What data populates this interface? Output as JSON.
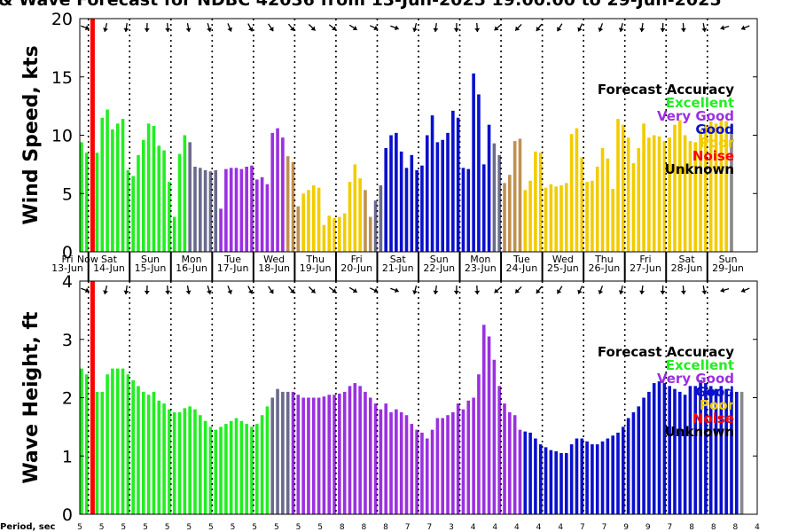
{
  "title": "& Wave Forecast for NDBC 42036 from 13-Jun-2025 19:00:00 to 29-Jun-2025",
  "colors": {
    "Excellent": "#22ee22",
    "Very Good": "#9b30e0",
    "Good": "#0a10cc",
    "Poor": "#f2cc00",
    "Noise": "#ff0000",
    "Unknown": "#000000",
    "mixed": "#6a6a8c",
    "mixed2": "#c09050"
  },
  "now_label": "Now",
  "days": [
    {
      "dow": "Fri",
      "date": "13-Jun"
    },
    {
      "dow": "Sat",
      "date": "14-Jun"
    },
    {
      "dow": "Sun",
      "date": "15-Jun"
    },
    {
      "dow": "Mon",
      "date": "16-Jun"
    },
    {
      "dow": "Tue",
      "date": "17-Jun"
    },
    {
      "dow": "Wed",
      "date": "18-Jun"
    },
    {
      "dow": "Thu",
      "date": "19-Jun"
    },
    {
      "dow": "Fri",
      "date": "20-Jun"
    },
    {
      "dow": "Sat",
      "date": "21-Jun"
    },
    {
      "dow": "Sun",
      "date": "22-Jun"
    },
    {
      "dow": "Mon",
      "date": "23-Jun"
    },
    {
      "dow": "Tue",
      "date": "24-Jun"
    },
    {
      "dow": "Wed",
      "date": "25-Jun"
    },
    {
      "dow": "Thu",
      "date": "26-Jun"
    },
    {
      "dow": "Fri",
      "date": "27-Jun"
    },
    {
      "dow": "Sat",
      "date": "28-Jun"
    },
    {
      "dow": "Sun",
      "date": "29-Jun"
    }
  ],
  "legend_title": "Forecast Accuracy",
  "legend_items": [
    "Excellent",
    "Very Good",
    "Good",
    "Poor",
    "Noise",
    "Unknown"
  ],
  "chart_data": [
    {
      "type": "bar",
      "ylabel": "Wind Speed, kts",
      "ylim": [
        0,
        20
      ],
      "yticks": [
        0,
        5,
        10,
        15,
        20
      ],
      "x_start_hour": 19,
      "x_step_hours": 3,
      "values": [
        9.4,
        8.5,
        0,
        8.5,
        11.5,
        12.2,
        10.5,
        11,
        11.4,
        7,
        6.5,
        8.3,
        9.6,
        11,
        10.8,
        9.1,
        8.7,
        6,
        3,
        8.4,
        10,
        9.4,
        7.3,
        7.2,
        7,
        6.9,
        7,
        3.7,
        7.1,
        7.2,
        7.2,
        7.1,
        7.3,
        7.4,
        6.2,
        6.4,
        5.8,
        10.2,
        10.6,
        9.8,
        8.2,
        7.7,
        3.9,
        5,
        5.3,
        5.7,
        5.5,
        2.3,
        3.1,
        2.9,
        3,
        3.3,
        6,
        7.5,
        6.3,
        5.3,
        3,
        4.4,
        5.7,
        8.9,
        10,
        10.2,
        8.6,
        7.2,
        8.3,
        7,
        7.4,
        10,
        11.7,
        9.4,
        9.6,
        10.2,
        12.1,
        11.5,
        7.2,
        7.1,
        15.3,
        13.5,
        7.5,
        10.9,
        9.3,
        8.3,
        5.9,
        6.6,
        9.5,
        9.7,
        5.3,
        6.1,
        8.6,
        8.5,
        5.5,
        5.8,
        5.6,
        5.7,
        5.9,
        10.1,
        10.6,
        8.1,
        6,
        6.1,
        7.3,
        8.9,
        8,
        5.4,
        11.4,
        10.9,
        9.8,
        7.6,
        8.9,
        11,
        9.8,
        10,
        9.9,
        9.5,
        9.8,
        10.9,
        11.3,
        10,
        9.5,
        9.4,
        10.5,
        10.9,
        11.2,
        11,
        11.3,
        11.2,
        10.9
      ],
      "accuracy": [
        "Excellent",
        "Excellent",
        "Excellent",
        "Excellent",
        "Excellent",
        "Excellent",
        "Excellent",
        "Excellent",
        "Excellent",
        "Excellent",
        "Excellent",
        "Excellent",
        "Excellent",
        "Excellent",
        "Excellent",
        "Excellent",
        "Excellent",
        "Excellent",
        "Excellent",
        "Excellent",
        "Excellent",
        "mixed",
        "mixed",
        "mixed",
        "mixed",
        "mixed",
        "mixed",
        "Very Good",
        "Very Good",
        "Very Good",
        "Very Good",
        "Very Good",
        "Very Good",
        "Very Good",
        "Very Good",
        "Very Good",
        "Very Good",
        "Very Good",
        "Very Good",
        "Very Good",
        "mixed2",
        "mixed2",
        "mixed2",
        "Poor",
        "Poor",
        "Poor",
        "Poor",
        "Poor",
        "Poor",
        "Poor",
        "Poor",
        "Poor",
        "Poor",
        "Poor",
        "Poor",
        "mixed2",
        "mixed2",
        "mixed",
        "mixed",
        "Good",
        "Good",
        "Good",
        "Good",
        "Good",
        "Good",
        "Good",
        "Good",
        "Good",
        "Good",
        "Good",
        "Good",
        "Good",
        "Good",
        "Good",
        "Good",
        "Good",
        "Good",
        "Good",
        "Good",
        "Good",
        "mixed",
        "mixed",
        "mixed2",
        "mixed2",
        "mixed2",
        "mixed2",
        "Poor",
        "Poor",
        "Poor",
        "Poor",
        "Poor",
        "Poor",
        "Poor",
        "Poor",
        "Poor",
        "Poor",
        "Poor",
        "Poor",
        "Poor",
        "Poor",
        "Poor",
        "Poor",
        "Poor",
        "Poor",
        "Poor",
        "Poor",
        "Poor",
        "Poor",
        "Poor",
        "Poor",
        "Poor",
        "Poor",
        "Poor",
        "Poor",
        "Poor",
        "Poor",
        "Poor",
        "Poor",
        "Poor",
        "Poor",
        "Poor",
        "Poor",
        "Poor",
        "Poor",
        "Poor",
        "Poor"
      ]
    },
    {
      "type": "bar",
      "ylabel": "Wave Height, ft",
      "ylim": [
        0,
        4
      ],
      "yticks": [
        0,
        1,
        2,
        3,
        4
      ],
      "x_start_hour": 19,
      "x_step_hours": 3,
      "values": [
        2.5,
        2.4,
        0,
        2.1,
        2.1,
        2.4,
        2.5,
        2.5,
        2.5,
        2.4,
        2.3,
        2.2,
        2.1,
        2.05,
        2.1,
        1.95,
        1.9,
        1.8,
        1.75,
        1.75,
        1.82,
        1.85,
        1.8,
        1.7,
        1.6,
        1.5,
        1.45,
        1.5,
        1.55,
        1.6,
        1.65,
        1.6,
        1.55,
        1.5,
        1.55,
        1.7,
        1.85,
        2.0,
        2.15,
        2.1,
        2.1,
        2.1,
        2.05,
        2.0,
        2.0,
        2.0,
        2.0,
        2.02,
        2.05,
        2.05,
        2.07,
        2.1,
        2.2,
        2.25,
        2.2,
        2.1,
        2.0,
        1.9,
        1.8,
        1.9,
        1.75,
        1.8,
        1.75,
        1.7,
        1.55,
        1.45,
        1.4,
        1.3,
        1.45,
        1.65,
        1.65,
        1.7,
        1.75,
        1.9,
        1.8,
        1.95,
        2.0,
        2.4,
        3.25,
        3.05,
        2.65,
        2.2,
        1.9,
        1.75,
        1.7,
        1.45,
        1.42,
        1.4,
        1.3,
        1.2,
        1.15,
        1.1,
        1.08,
        1.05,
        1.05,
        1.2,
        1.3,
        1.3,
        1.25,
        1.2,
        1.2,
        1.25,
        1.3,
        1.35,
        1.4,
        1.5,
        1.65,
        1.75,
        1.85,
        2.0,
        2.1,
        2.25,
        2.28,
        2.25,
        2.2,
        2.15,
        2.1,
        2.05,
        2.2,
        2.2,
        2.3,
        2.25,
        2.2,
        2.15,
        2.2,
        2.15,
        2.1,
        2.1,
        2.1
      ],
      "accuracy": [
        "Excellent",
        "Excellent",
        "Excellent",
        "Excellent",
        "Excellent",
        "Excellent",
        "Excellent",
        "Excellent",
        "Excellent",
        "Excellent",
        "Excellent",
        "Excellent",
        "Excellent",
        "Excellent",
        "Excellent",
        "Excellent",
        "Excellent",
        "Excellent",
        "Excellent",
        "Excellent",
        "Excellent",
        "Excellent",
        "Excellent",
        "Excellent",
        "Excellent",
        "Excellent",
        "Excellent",
        "Excellent",
        "Excellent",
        "Excellent",
        "Excellent",
        "Excellent",
        "Excellent",
        "Excellent",
        "Excellent",
        "Excellent",
        "Excellent",
        "mixed",
        "mixed",
        "mixed",
        "mixed",
        "Very Good",
        "Very Good",
        "Very Good",
        "Very Good",
        "Very Good",
        "Very Good",
        "Very Good",
        "Very Good",
        "Very Good",
        "Very Good",
        "Very Good",
        "Very Good",
        "Very Good",
        "Very Good",
        "Very Good",
        "Very Good",
        "Very Good",
        "Very Good",
        "Very Good",
        "Very Good",
        "Very Good",
        "Very Good",
        "Very Good",
        "Very Good",
        "Very Good",
        "Very Good",
        "Very Good",
        "Very Good",
        "Very Good",
        "Very Good",
        "Very Good",
        "Very Good",
        "Very Good",
        "Very Good",
        "Very Good",
        "Very Good",
        "Very Good",
        "Very Good",
        "Very Good",
        "Very Good",
        "Very Good",
        "Very Good",
        "Very Good",
        "Very Good",
        "Very Good",
        "Good",
        "Good",
        "Good",
        "Good",
        "Good",
        "Good",
        "Good",
        "Good",
        "Good",
        "Good",
        "Good",
        "Good",
        "Good",
        "Good",
        "Good",
        "Good",
        "Good",
        "Good",
        "Good",
        "Good",
        "Good",
        "Good",
        "Good",
        "Good",
        "Good",
        "Good",
        "Good",
        "Good",
        "Good",
        "Good",
        "Good",
        "Good",
        "Good",
        "Good",
        "Good",
        "Good",
        "Good",
        "Good",
        "Good",
        "Good",
        "Good",
        "Good"
      ]
    }
  ],
  "period_label": "Period, sec",
  "periods": [
    "5",
    "5",
    "5",
    "5",
    "5",
    "5",
    "5",
    "5",
    "5",
    "5",
    "5",
    "5",
    "8",
    "8",
    "8",
    "7",
    "7",
    "3",
    "4",
    "4",
    "4",
    "4",
    "4",
    "7",
    "7",
    "9",
    "9",
    "7",
    "8",
    "8",
    "8",
    "4"
  ]
}
